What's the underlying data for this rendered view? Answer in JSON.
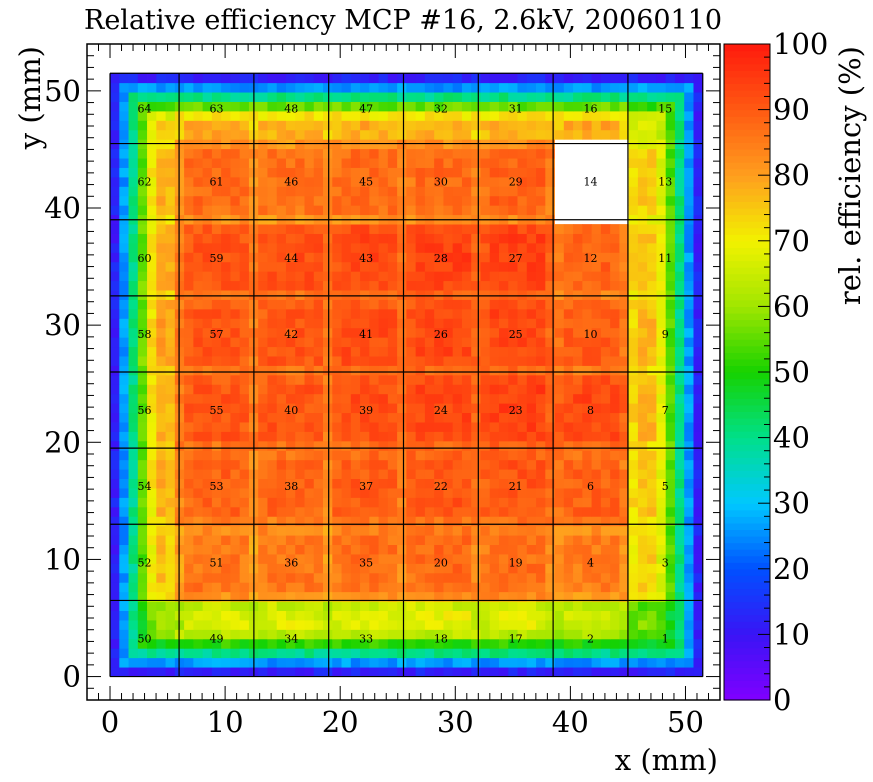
{
  "chart_data": {
    "type": "heatmap",
    "title": "Relative efficiency MCP #16, 2.6kV, 20060110",
    "xlabel": "x (mm)",
    "ylabel": "y (mm)",
    "zlabel": "rel. efficiency (%)",
    "xlim": [
      -2,
      53
    ],
    "ylim": [
      -2,
      54
    ],
    "zlim": [
      0,
      100
    ],
    "x_ticks": [
      0,
      10,
      20,
      30,
      40,
      50
    ],
    "y_ticks": [
      0,
      10,
      20,
      30,
      40,
      50
    ],
    "z_ticks": [
      0,
      10,
      20,
      30,
      40,
      50,
      60,
      70,
      80,
      90,
      100
    ],
    "active_area": [
      0,
      51.5,
      0,
      51.5
    ],
    "pad_grid": {
      "x_edges": [
        0,
        6,
        12.5,
        19,
        25.5,
        32,
        38.5,
        45,
        51.5
      ],
      "y_edges": [
        0,
        6.5,
        13,
        19.5,
        26,
        32.5,
        39,
        45.5,
        51.5
      ],
      "rows": [
        {
          "labels": [
            "64",
            "63",
            "48",
            "47",
            "32",
            "31",
            "16",
            "15"
          ],
          "efficiency": [
            74,
            80,
            79,
            79,
            79,
            79,
            79,
            70
          ]
        },
        {
          "labels": [
            "62",
            "61",
            "46",
            "45",
            "30",
            "29",
            "14",
            "13"
          ],
          "efficiency": [
            78,
            88,
            87,
            88,
            88,
            89,
            null,
            75
          ]
        },
        {
          "labels": [
            "60",
            "59",
            "44",
            "43",
            "28",
            "27",
            "12",
            "11"
          ],
          "efficiency": [
            79,
            91,
            92,
            93,
            94,
            94,
            89,
            76
          ]
        },
        {
          "labels": [
            "58",
            "57",
            "42",
            "41",
            "26",
            "25",
            "10",
            "9"
          ],
          "efficiency": [
            80,
            91,
            91,
            92,
            93,
            93,
            90,
            77
          ]
        },
        {
          "labels": [
            "56",
            "55",
            "40",
            "39",
            "24",
            "23",
            "8",
            "7"
          ],
          "efficiency": [
            79,
            91,
            91,
            92,
            93,
            94,
            93,
            77
          ]
        },
        {
          "labels": [
            "54",
            "53",
            "38",
            "37",
            "22",
            "21",
            "6",
            "5"
          ],
          "efficiency": [
            78,
            89,
            89,
            90,
            91,
            91,
            89,
            76
          ]
        },
        {
          "labels": [
            "52",
            "51",
            "36",
            "35",
            "20",
            "19",
            "4",
            "3"
          ],
          "efficiency": [
            76,
            86,
            86,
            87,
            88,
            87,
            85,
            74
          ]
        },
        {
          "labels": [
            "50",
            "49",
            "34",
            "33",
            "18",
            "17",
            "2",
            "1"
          ],
          "efficiency": [
            62,
            68,
            68,
            69,
            69,
            68,
            66,
            58
          ]
        }
      ]
    },
    "edge_efficiency": {
      "outer": 5,
      "inner": 40
    },
    "dead_pad": "14",
    "colorscale": [
      "#8000ff",
      "#3a14f5",
      "#0050ff",
      "#00c8ff",
      "#00e08a",
      "#16d200",
      "#a0e600",
      "#f2f200",
      "#ff9e1e",
      "#ff5a12",
      "#ff1a0d"
    ],
    "grid": false,
    "legend": "colorbar-right"
  }
}
